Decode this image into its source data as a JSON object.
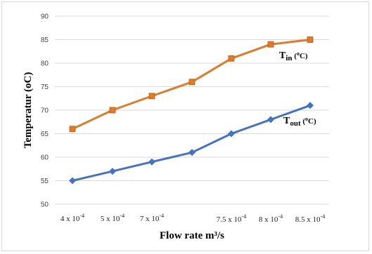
{
  "chart_data": {
    "type": "line",
    "xlabel": "Flow rate m³/s",
    "ylabel": "Temperatur (oC)",
    "ylim": [
      50,
      90
    ],
    "yticks": [
      50,
      55,
      60,
      65,
      70,
      75,
      80,
      85,
      90
    ],
    "grid": "horizontal",
    "categories": [
      {
        "mantissa": "4",
        "exponent": "-4"
      },
      {
        "mantissa": "5",
        "exponent": "-4"
      },
      {
        "mantissa": "7",
        "exponent": "-4"
      },
      {
        "mantissa": "",
        "exponent": ""
      },
      {
        "mantissa": "7.5",
        "exponent": "-4"
      },
      {
        "mantissa": "8",
        "exponent": "-4"
      },
      {
        "mantissa": "8.5",
        "exponent": "-4"
      }
    ],
    "x_times": "x 10",
    "series": [
      {
        "name_main": "T",
        "name_sub": "in",
        "unit_text": "(",
        "unit_sup": "o",
        "unit_end": "C)",
        "color": "#e07b28",
        "marker": "square",
        "values": [
          66,
          70,
          73,
          76,
          81,
          84,
          85
        ]
      },
      {
        "name_main": "T",
        "name_sub": "out",
        "unit_text": "(",
        "unit_sup": "o",
        "unit_end": "C)",
        "color": "#4472c4",
        "marker": "diamond",
        "values": [
          55,
          57,
          59,
          61,
          65,
          68,
          71
        ]
      }
    ]
  }
}
